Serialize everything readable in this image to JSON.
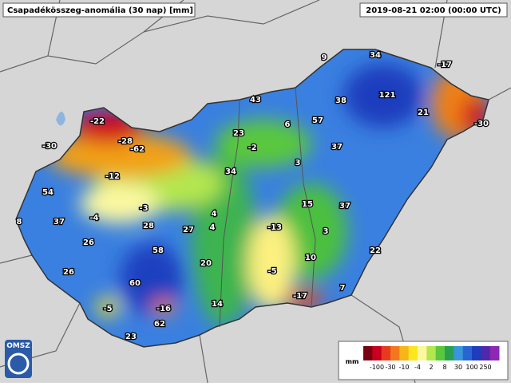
{
  "header": {
    "title": "Csapadékösszeg-anomália (30 nap) [mm]",
    "timestamp": "2019-08-21 02:00 (00:00 UTC)"
  },
  "stations": [
    34,
    9,
    -17,
    43,
    38,
    121,
    21,
    -30,
    -22,
    6,
    57,
    -28,
    -62,
    -30,
    23,
    -2,
    37,
    3,
    -12,
    34,
    54,
    15,
    37,
    -4,
    -3,
    4,
    -13,
    37,
    8,
    28,
    4,
    27,
    3,
    26,
    58,
    22,
    10,
    20,
    -5,
    26,
    60,
    7,
    -17,
    -5,
    -16,
    14,
    62,
    23
  ],
  "legend": {
    "unit": "mm",
    "ticks": [
      -100,
      -30,
      -10,
      -4,
      2,
      8,
      30,
      100,
      250
    ],
    "colors": [
      "#7a0010",
      "#c8001e",
      "#e83a1e",
      "#f2781e",
      "#f8b418",
      "#fce61e",
      "#fcf8a0",
      "#b4e650",
      "#5ac83c",
      "#28a050",
      "#3a96dc",
      "#2864d2",
      "#1e3cbe",
      "#5028aa",
      "#8c28b4"
    ]
  },
  "logo": "OMSZ"
}
